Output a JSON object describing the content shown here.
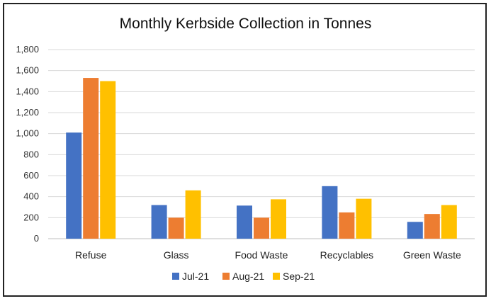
{
  "chart_data": {
    "type": "bar",
    "title": "Monthly Kerbside Collection in Tonnes",
    "categories": [
      "Refuse",
      "Glass",
      "Food Waste",
      "Recyclables",
      "Green Waste"
    ],
    "series": [
      {
        "name": "Jul-21",
        "color": "#4472C4",
        "values": [
          1010,
          320,
          315,
          500,
          160
        ]
      },
      {
        "name": "Aug-21",
        "color": "#ED7D31",
        "values": [
          1530,
          200,
          200,
          250,
          235
        ]
      },
      {
        "name": "Sep-21",
        "color": "#FFC000",
        "values": [
          1500,
          460,
          375,
          380,
          320
        ]
      }
    ],
    "yticks": [
      "0",
      "200",
      "400",
      "600",
      "800",
      "1,000",
      "1,200",
      "1,400",
      "1,600",
      "1,800"
    ],
    "ylim": [
      0,
      1800
    ],
    "grid": true,
    "legend": "bottom"
  }
}
